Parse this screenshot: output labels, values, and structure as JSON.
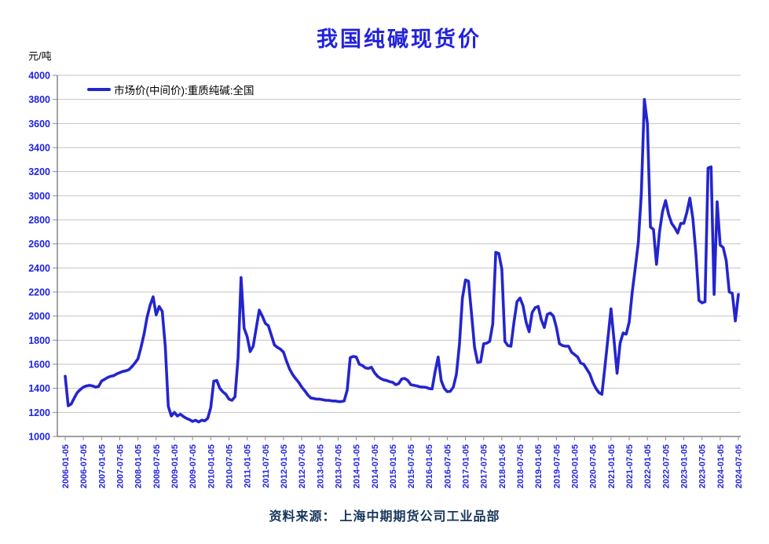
{
  "page": {
    "title": "我国纯碱现货价",
    "y_unit_label": "元/吨",
    "source_note": "资料来源： 上海中期期货公司工业品部"
  },
  "legend": {
    "series_label": "市场价(中间价):重质纯碱:全国"
  },
  "colors": {
    "line": "#2425CD",
    "tick_label": "#2222E0",
    "title": "#2222DD",
    "source": "#17365D",
    "grid": "#C3C3C3",
    "axis": "#666666",
    "tick_mark": "#8C8C8C",
    "legend_text": "#000000",
    "background": "#FFFFFF"
  },
  "chart_data": {
    "type": "line",
    "title": "我国纯碱现货价",
    "ylabel": "元/吨",
    "xlabel": "",
    "ylim": [
      1000,
      4000
    ],
    "y_tick_step": 200,
    "grid": true,
    "legend_position": "top-left-inside",
    "x_tick_labels": [
      "2006-01-05",
      "2006-07-05",
      "2007-01-05",
      "2007-07-05",
      "2008-01-05",
      "2008-07-05",
      "2009-01-05",
      "2009-07-05",
      "2010-01-05",
      "2010-07-05",
      "2011-01-05",
      "2011-07-05",
      "2012-01-05",
      "2012-07-05",
      "2013-01-05",
      "2013-07-05",
      "2014-01-05",
      "2014-07-05",
      "2015-01-05",
      "2015-07-05",
      "2016-01-05",
      "2016-07-05",
      "2017-01-05",
      "2017-07-05",
      "2018-01-05",
      "2018-07-05",
      "2019-01-05",
      "2019-07-05",
      "2020-01-05",
      "2020-07-05",
      "2021-01-05",
      "2021-07-05",
      "2022-01-05",
      "2022-07-05",
      "2023-01-05",
      "2023-07-05",
      "2024-01-05",
      "2024-07-05"
    ],
    "series": [
      {
        "name": "市场价(中间价):重质纯碱:全国",
        "start_month": "2006-01",
        "interval": "monthly",
        "unit": "元/吨",
        "values": [
          1500,
          1255,
          1270,
          1320,
          1365,
          1390,
          1410,
          1420,
          1425,
          1420,
          1410,
          1415,
          1460,
          1475,
          1490,
          1500,
          1505,
          1520,
          1530,
          1540,
          1545,
          1555,
          1580,
          1610,
          1645,
          1740,
          1850,
          1990,
          2090,
          2160,
          2010,
          2080,
          2040,
          1750,
          1250,
          1170,
          1200,
          1170,
          1185,
          1165,
          1150,
          1140,
          1125,
          1135,
          1120,
          1135,
          1130,
          1150,
          1240,
          1460,
          1465,
          1400,
          1370,
          1350,
          1310,
          1300,
          1330,
          1650,
          2320,
          1900,
          1830,
          1705,
          1750,
          1900,
          2050,
          2000,
          1940,
          1920,
          1840,
          1760,
          1740,
          1725,
          1700,
          1625,
          1560,
          1515,
          1480,
          1450,
          1410,
          1380,
          1345,
          1320,
          1315,
          1310,
          1310,
          1305,
          1300,
          1300,
          1295,
          1295,
          1290,
          1290,
          1295,
          1385,
          1655,
          1665,
          1660,
          1600,
          1590,
          1570,
          1565,
          1575,
          1530,
          1500,
          1482,
          1470,
          1465,
          1455,
          1450,
          1430,
          1440,
          1478,
          1482,
          1465,
          1430,
          1425,
          1420,
          1412,
          1410,
          1408,
          1398,
          1395,
          1540,
          1660,
          1465,
          1400,
          1372,
          1375,
          1410,
          1515,
          1760,
          2150,
          2300,
          2290,
          2020,
          1740,
          1615,
          1620,
          1770,
          1775,
          1790,
          1935,
          2530,
          2520,
          2390,
          1790,
          1755,
          1750,
          1950,
          2120,
          2150,
          2085,
          1950,
          1870,
          2030,
          2070,
          2080,
          1970,
          1905,
          2015,
          2025,
          2000,
          1905,
          1770,
          1755,
          1750,
          1750,
          1700,
          1680,
          1660,
          1610,
          1600,
          1560,
          1520,
          1450,
          1400,
          1365,
          1350,
          1580,
          1820,
          2060,
          1800,
          1525,
          1775,
          1860,
          1850,
          1950,
          2200,
          2400,
          2610,
          3020,
          3800,
          3600,
          2740,
          2720,
          2430,
          2700,
          2870,
          2960,
          2845,
          2770,
          2735,
          2690,
          2770,
          2770,
          2860,
          2980,
          2810,
          2520,
          2130,
          2110,
          2120,
          3230,
          3240,
          2180,
          2950,
          2590,
          2570,
          2460,
          2200,
          2190,
          1960,
          2180
        ]
      }
    ]
  }
}
